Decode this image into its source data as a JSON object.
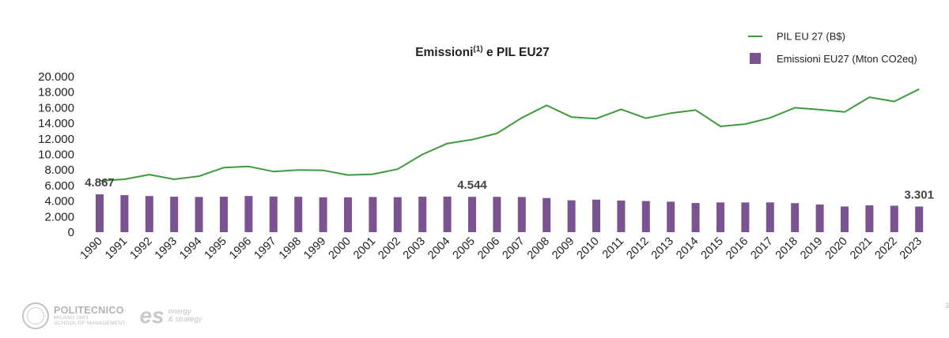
{
  "chart_data": {
    "type": "bar+line",
    "title": "Emissioni",
    "title_superscript": "(1)",
    "title_suffix": " e PIL EU27",
    "categories": [
      "1990",
      "1991",
      "1992",
      "1993",
      "1994",
      "1995",
      "1996",
      "1997",
      "1998",
      "1999",
      "2000",
      "2001",
      "2002",
      "2003",
      "2004",
      "2005",
      "2006",
      "2007",
      "2008",
      "2009",
      "2010",
      "2011",
      "2012",
      "2013",
      "2014",
      "2015",
      "2016",
      "2017",
      "2018",
      "2019",
      "2020",
      "2021",
      "2022",
      "2023"
    ],
    "y_ticks": [
      "0",
      "2.000",
      "4.000",
      "6.000",
      "8.000",
      "10.000",
      "12.000",
      "14.000",
      "16.000",
      "18.000",
      "20.000"
    ],
    "ylim": [
      0,
      20000
    ],
    "series": [
      {
        "name": "Emissioni EU27 (Mton CO2eq)",
        "type": "bar",
        "color": "#7a5390",
        "values": [
          4867,
          4760,
          4650,
          4560,
          4530,
          4560,
          4650,
          4580,
          4550,
          4480,
          4480,
          4520,
          4500,
          4560,
          4570,
          4544,
          4540,
          4520,
          4390,
          4100,
          4180,
          4070,
          4000,
          3920,
          3750,
          3820,
          3820,
          3830,
          3730,
          3560,
          3300,
          3450,
          3400,
          3301
        ]
      },
      {
        "name": "PIL EU 27 (B$)",
        "type": "line",
        "color": "#3d9b3d",
        "values": [
          6600,
          6800,
          7400,
          6800,
          7200,
          8300,
          8450,
          7800,
          8000,
          7950,
          7350,
          7450,
          8100,
          10000,
          11400,
          11900,
          12700,
          14700,
          16300,
          14800,
          14600,
          15800,
          14650,
          15300,
          15700,
          13600,
          13900,
          14700,
          16000,
          15750,
          15450,
          17350,
          16800,
          18400
        ]
      }
    ],
    "data_labels": [
      {
        "index": 0,
        "text": "4.867"
      },
      {
        "index": 15,
        "text": "4.544"
      },
      {
        "index": 33,
        "text": "3.301"
      }
    ],
    "legend_position": "top-right",
    "grid": false
  },
  "footer": {
    "poli_name": "POLITECNICO",
    "poli_city": "MILANO 1863",
    "poli_school": "SCHOOL OF MANAGEMENT",
    "es_mark": "es",
    "es_line1": "energy",
    "es_line2": "& strategy",
    "page_number": "3"
  }
}
